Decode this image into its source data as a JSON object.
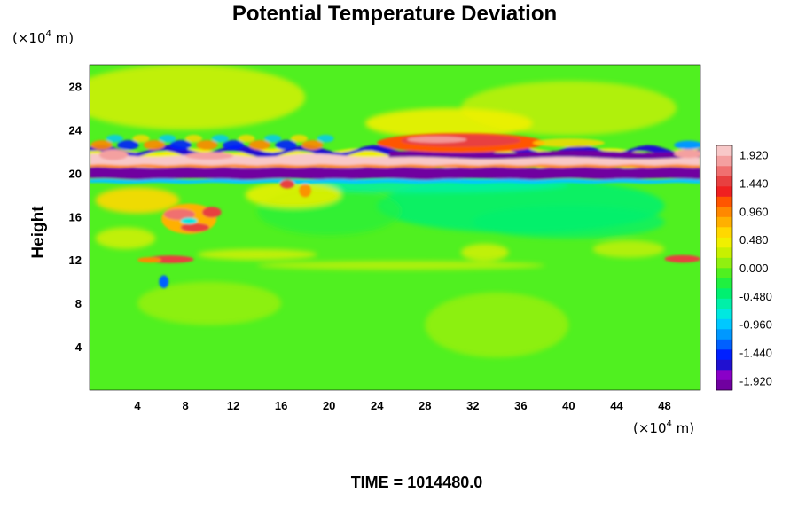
{
  "chart_data": {
    "type": "heatmap",
    "title": "Potential Temperature Deviation",
    "ylabel": "Height",
    "x_unit": {
      "prefix": "(×10",
      "exp": "4",
      "suffix": " m)"
    },
    "y_unit": {
      "prefix": "(×10",
      "exp": "4",
      "suffix": " m)"
    },
    "xlim": [
      0,
      51
    ],
    "ylim": [
      0,
      30
    ],
    "x_ticks": [
      4,
      8,
      12,
      16,
      20,
      24,
      28,
      32,
      36,
      40,
      44,
      48
    ],
    "y_ticks": [
      4,
      8,
      12,
      16,
      20,
      24,
      28
    ],
    "colorbar": {
      "range": [
        -2.08,
        2.08
      ],
      "tick_labels": [
        "1.920",
        "1.440",
        "0.960",
        "0.480",
        "0.000",
        "-0.480",
        "-0.960",
        "-1.440",
        "-1.920"
      ],
      "tick_values": [
        1.92,
        1.44,
        0.96,
        0.48,
        0.0,
        -0.48,
        -0.96,
        -1.44,
        -1.92
      ],
      "colors": [
        "#7000a0",
        "#8a00c8",
        "#2010d0",
        "#0020ff",
        "#0060ff",
        "#0098ff",
        "#00c8ff",
        "#00e8e0",
        "#00f0a8",
        "#00f070",
        "#20f040",
        "#50f020",
        "#90f010",
        "#c8f000",
        "#f0f000",
        "#ffd800",
        "#ffb000",
        "#ff8800",
        "#ff5500",
        "#f02020",
        "#e84040",
        "#f07070",
        "#f4a0a0",
        "#f8c8c8"
      ]
    },
    "features": [
      {
        "desc": "negative anomaly band (purple)",
        "x": [
          0,
          51
        ],
        "y": [
          19.6,
          20.6
        ],
        "value": -2.0
      },
      {
        "desc": "positive anomaly band (pink)",
        "x": [
          0,
          51
        ],
        "y": [
          20.6,
          21.6
        ],
        "value": 1.9
      },
      {
        "desc": "negative upper band",
        "x": [
          25,
          51
        ],
        "y": [
          21.6,
          22.2
        ],
        "value": -1.9
      },
      {
        "desc": "positive arc",
        "x": [
          25,
          39
        ],
        "y": [
          22.2,
          23.6
        ],
        "value": 1.4
      },
      {
        "desc": "waves above band",
        "x": [
          0,
          20
        ],
        "y": [
          21.6,
          23.2
        ],
        "value": 1.2
      },
      {
        "desc": "red vortex",
        "x": [
          6,
          11
        ],
        "y": [
          14,
          17.5
        ],
        "value": 1.6
      },
      {
        "desc": "red streak",
        "x": [
          4,
          8
        ],
        "y": [
          11.6,
          12.4
        ],
        "value": 1.5
      },
      {
        "desc": "blue spot",
        "x": [
          5.8,
          6.6
        ],
        "y": [
          9.5,
          10.5
        ],
        "value": -1.3
      },
      {
        "desc": "red streak right",
        "x": [
          48,
          51
        ],
        "y": [
          11.8,
          12.4
        ],
        "value": 1.4
      },
      {
        "desc": "cyan region",
        "x": [
          24,
          46
        ],
        "y": [
          15,
          19
        ],
        "value": -0.5
      }
    ]
  },
  "footer": {
    "time_label": "TIME = 1014480.0"
  }
}
